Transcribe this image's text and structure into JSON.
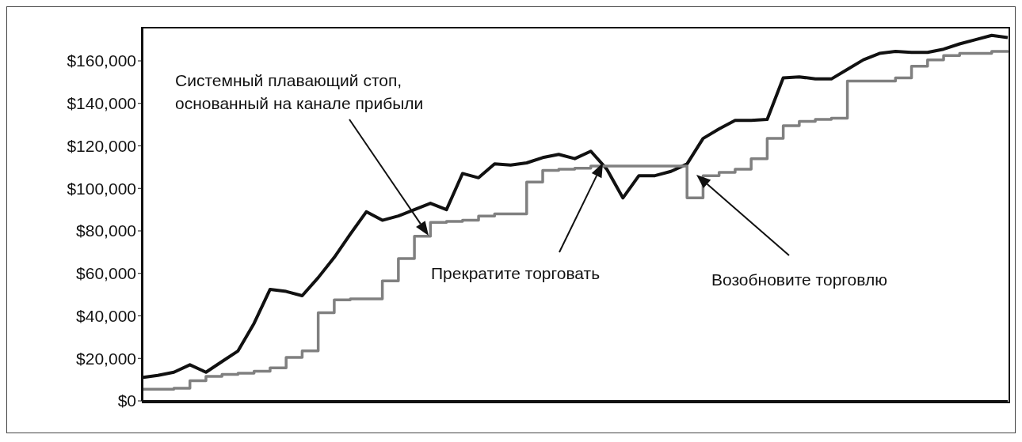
{
  "chart_data": {
    "type": "line",
    "categories": [
      null,
      null,
      null,
      null,
      null,
      null,
      null,
      null,
      null,
      null,
      null,
      null,
      null,
      null,
      null,
      null,
      null,
      null,
      null,
      null,
      null,
      null,
      null,
      null,
      null,
      null,
      null,
      null,
      null,
      null,
      null,
      null,
      null,
      null,
      null,
      null,
      null,
      null,
      null,
      null,
      null,
      null,
      null,
      null,
      null,
      null,
      null,
      null,
      null,
      null,
      null,
      null,
      null,
      null,
      null
    ],
    "series": [
      {
        "type": "line",
        "color": "#111111",
        "values": [
          11000,
          12000,
          13500,
          17000,
          13500,
          18500,
          23500,
          36500,
          52500,
          51500,
          49500,
          58000,
          67500,
          78500,
          89000,
          85000,
          87000,
          90000,
          93000,
          90000,
          107000,
          105000,
          111500,
          111000,
          112000,
          114500,
          116000,
          114000,
          117500,
          109000,
          95500,
          106000,
          106000,
          108000,
          111500,
          123500,
          128000,
          132000,
          132000,
          132500,
          152000,
          152500,
          151500,
          151500,
          156000,
          160500,
          163500,
          164500,
          164000,
          164000,
          165500,
          168000,
          170000,
          172000,
          171000
        ]
      },
      {
        "type": "step",
        "color": "#808080",
        "values": [
          5500,
          5500,
          6000,
          9500,
          11500,
          12500,
          13000,
          14000,
          15500,
          20500,
          23500,
          41500,
          47500,
          48000,
          48000,
          56500,
          67000,
          77500,
          84000,
          84500,
          85000,
          87000,
          88000,
          88000,
          103000,
          108500,
          109000,
          109500,
          110500,
          110500,
          110500,
          110500,
          110500,
          110500,
          95500,
          106000,
          107500,
          109000,
          114000,
          123500,
          129500,
          131500,
          132500,
          133000,
          150500,
          150500,
          150500,
          152000,
          157500,
          160500,
          162500,
          163500,
          163500,
          164500,
          165000
        ]
      }
    ],
    "ylim": [
      0,
      176000
    ],
    "yticks": [
      {
        "value": 0,
        "label": "$0"
      },
      {
        "value": 20000,
        "label": "$20,000"
      },
      {
        "value": 40000,
        "label": "$40,000"
      },
      {
        "value": 60000,
        "label": "$60,000"
      },
      {
        "value": 80000,
        "label": "$80,000"
      },
      {
        "value": 100000,
        "label": "$100,000"
      },
      {
        "value": 120000,
        "label": "$120,000"
      },
      {
        "value": 140000,
        "label": "$140,000"
      },
      {
        "value": 160000,
        "label": "$160,000"
      }
    ],
    "tick_labels": "y",
    "grid": false,
    "legend": false,
    "marker": "none",
    "line_style": "solid",
    "annotations": [
      "Системный плавающий стоп,\nоснованный на канале прибыли",
      "Прекратите торговать",
      "Возобновите торговлю"
    ]
  }
}
